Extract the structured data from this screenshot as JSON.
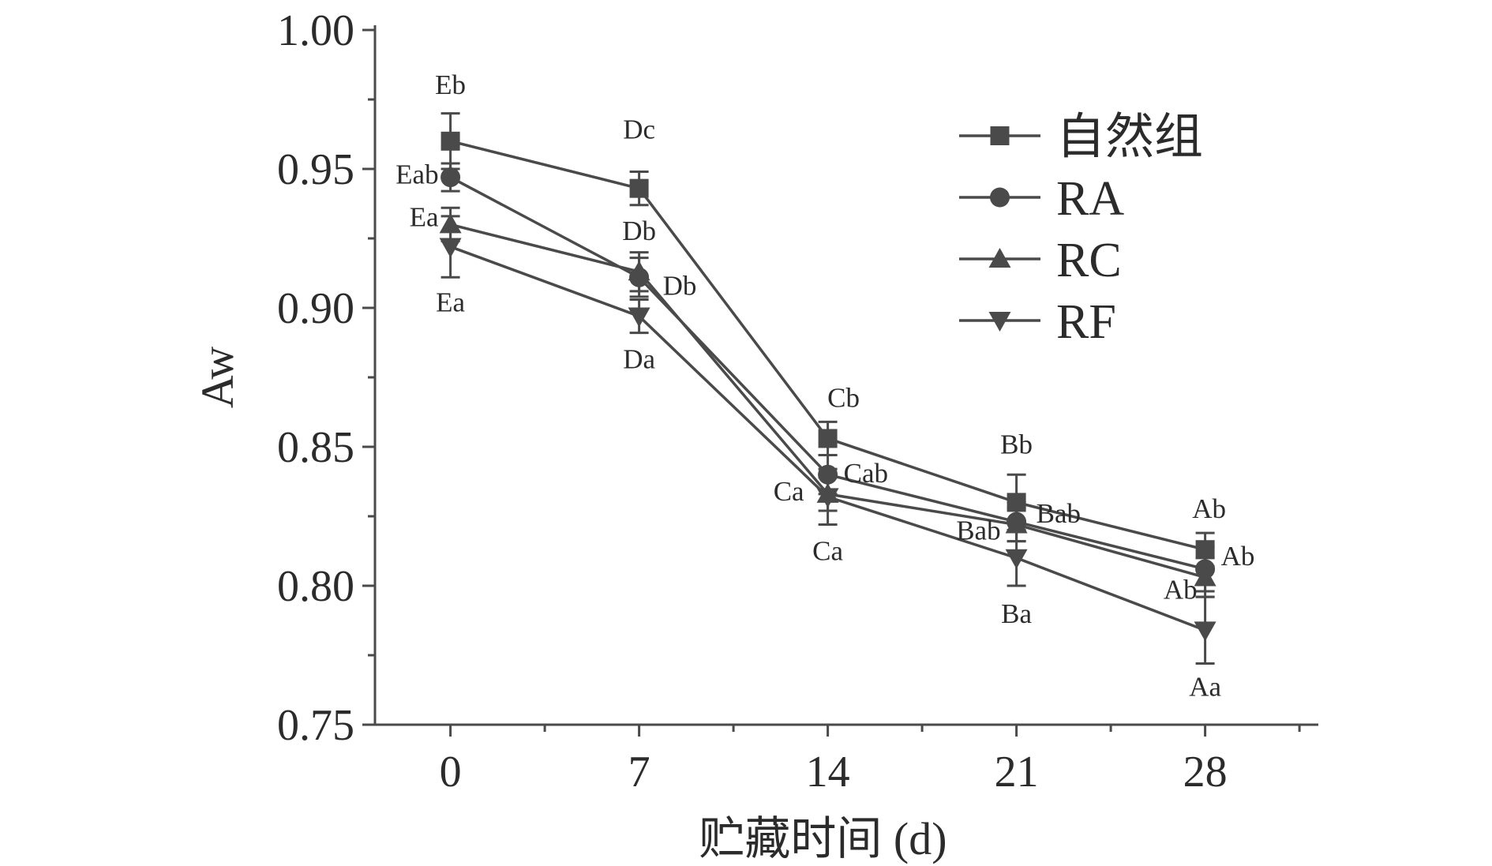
{
  "chart_data": {
    "type": "line",
    "xlabel": "贮藏时间 (d)",
    "ylabel": "Aw",
    "x": [
      0,
      7,
      14,
      21,
      28
    ],
    "x_tick_labels": [
      "0",
      "7",
      "14",
      "21",
      "28"
    ],
    "xlim": [
      -2.8,
      32.2
    ],
    "ylim": [
      0.75,
      1.0
    ],
    "y_ticks": [
      0.75,
      0.8,
      0.85,
      0.9,
      0.95,
      1.0
    ],
    "y_tick_labels": [
      "0.75",
      "0.80",
      "0.85",
      "0.90",
      "0.95",
      "1.00"
    ],
    "grid": false,
    "legend_position": "top-right",
    "line_color": "#4a4a4a",
    "series": [
      {
        "name": "自然组",
        "marker": "square",
        "values": [
          0.96,
          0.943,
          0.853,
          0.83,
          0.813
        ],
        "errors": [
          0.01,
          0.006,
          0.006,
          0.01,
          0.006
        ],
        "labels": [
          "Eb",
          "Dc",
          "Cb",
          "Bb",
          "Ab"
        ]
      },
      {
        "name": "RA",
        "marker": "circle",
        "values": [
          0.947,
          0.911,
          0.84,
          0.823,
          0.806
        ],
        "errors": [
          0.005,
          0.007,
          0.007,
          0.007,
          0.008
        ],
        "labels": [
          "Eab",
          "Db",
          "Cab",
          "Bab",
          "Ab"
        ]
      },
      {
        "name": "RC",
        "marker": "triangle-up",
        "values": [
          0.93,
          0.913,
          0.833,
          0.822,
          0.803
        ],
        "errors": [
          0.006,
          0.007,
          0.006,
          0.006,
          0.007
        ],
        "labels": [
          "Ea",
          "Db",
          "Ca",
          "Bab",
          "Ab"
        ]
      },
      {
        "name": "RF",
        "marker": "triangle-down",
        "values": [
          0.922,
          0.897,
          0.832,
          0.81,
          0.784
        ],
        "errors": [
          0.011,
          0.006,
          0.01,
          0.01,
          0.012
        ],
        "labels": [
          "Ea",
          "Da",
          "Ca",
          "Ba",
          "Aa"
        ]
      }
    ]
  }
}
